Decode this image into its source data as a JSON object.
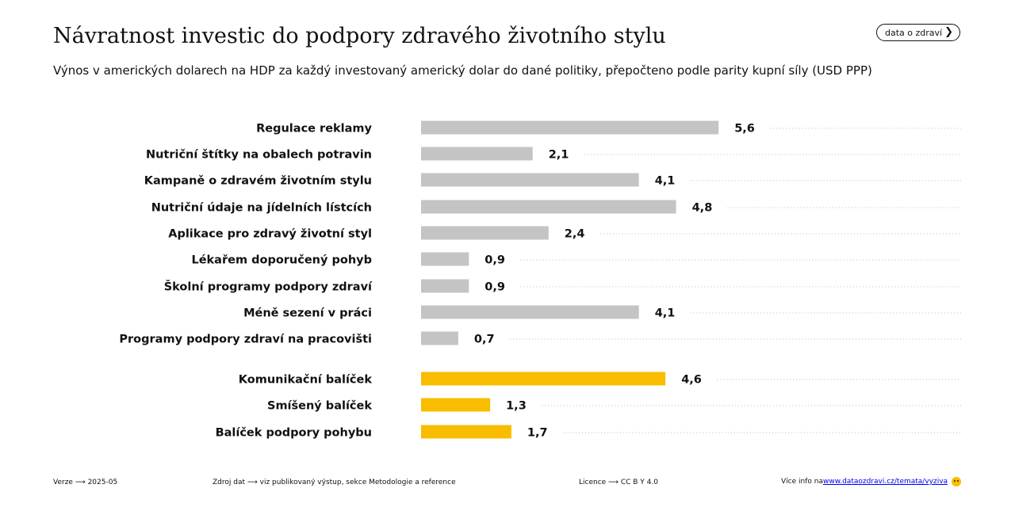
{
  "header": {
    "title": "Návratnost investic do podpory zdravého životního stylu",
    "subtitle": "Výnos v amerických dolarech na HDP za každý investovaný americký dolar do dané politiky, přepočteno podle parity kupní síly (USD PPP)",
    "link_button": "data o zdraví"
  },
  "chart_data": {
    "type": "bar",
    "orientation": "horizontal",
    "xlim": [
      0,
      5.6
    ],
    "grid": false,
    "colors": {
      "individual": "#c4c4c4",
      "package": "#f9bd00",
      "leader": "#bbbbbb"
    },
    "categories": [
      "Regulace reklamy",
      "Nutriční štítky na obalech potravin",
      "Kampaně o zdravém životním stylu",
      "Nutriční údaje na jídelních lístcích",
      "Aplikace pro zdravý životní styl",
      "Lékařem doporučený pohyb",
      "Školní programy podpory zdraví",
      "Méně sezení v práci",
      "Programy podpory zdraví na pracovišti",
      "Komunikační balíček",
      "Smíšený balíček",
      "Balíček podpory pohybu"
    ],
    "values": [
      5.6,
      2.1,
      4.1,
      4.8,
      2.4,
      0.9,
      0.9,
      4.1,
      0.7,
      4.6,
      1.3,
      1.7
    ],
    "labels": [
      "5,6",
      "2,1",
      "4,1",
      "4,8",
      "2,4",
      "0,9",
      "0,9",
      "4,1",
      "0,7",
      "4,6",
      "1,3",
      "1,7"
    ],
    "groups": [
      "individual",
      "individual",
      "individual",
      "individual",
      "individual",
      "individual",
      "individual",
      "individual",
      "individual",
      "package",
      "package",
      "package"
    ]
  },
  "footer": {
    "version": "Verze ⟶ 2025-05",
    "source": "Zdroj dat ⟶ viz publikovaný výstup, sekce Metodologie a reference",
    "license": "Licence ⟶ CC B Y 4.0",
    "more_prefix": "Více info na ",
    "more_link": "www.dataozdravi.cz/temata/vyziva"
  }
}
